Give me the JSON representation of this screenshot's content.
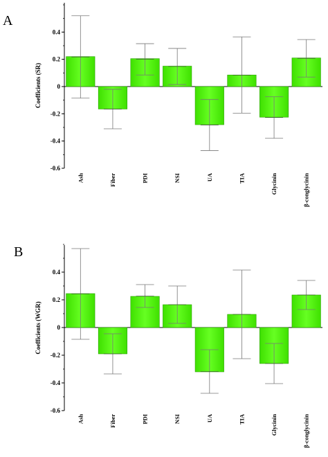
{
  "chart_data": [
    {
      "type": "bar",
      "panel_label": "A",
      "categories": [
        "Ash",
        "Fiber",
        "PDI",
        "NSI",
        "UA",
        "TIA",
        "Glycinin",
        "β-conglycinin"
      ],
      "values": [
        0.22,
        -0.165,
        0.205,
        0.15,
        -0.28,
        0.085,
        -0.225,
        0.21
      ],
      "error_high": [
        0.52,
        -0.02,
        0.315,
        0.28,
        -0.095,
        0.365,
        -0.075,
        0.345
      ],
      "error_low": [
        -0.085,
        -0.31,
        0.085,
        0.015,
        -0.47,
        -0.195,
        -0.38,
        0.07
      ],
      "ylabel": "Coefficients (SR)",
      "ylim": [
        -0.6,
        0.6
      ],
      "yticks": [
        -0.6,
        -0.4,
        -0.2,
        0,
        0.2,
        0.4
      ],
      "ytick_labels": [
        "-0.6",
        "-0.4",
        "-0.2",
        "0",
        "0.2",
        "0.4"
      ],
      "bar_color": "#44ee00",
      "grid": false
    },
    {
      "type": "bar",
      "panel_label": "B",
      "categories": [
        "Ash",
        "Fiber",
        "PDI",
        "NSI",
        "UA",
        "TIA",
        "Glycinin",
        "β-conglycinin"
      ],
      "values": [
        0.245,
        -0.19,
        0.225,
        0.165,
        -0.32,
        0.095,
        -0.26,
        0.235
      ],
      "error_high": [
        0.57,
        -0.045,
        0.31,
        0.3,
        -0.16,
        0.415,
        -0.115,
        0.34
      ],
      "error_low": [
        -0.085,
        -0.335,
        0.145,
        0.03,
        -0.475,
        -0.225,
        -0.405,
        0.13
      ],
      "ylabel": "Coefficients (WGR)",
      "ylim": [
        -0.6,
        0.6
      ],
      "yticks": [
        -0.6,
        -0.4,
        -0.2,
        0,
        0.2,
        0.4
      ],
      "ytick_labels": [
        "-0.6",
        "-0.4",
        "-0.2",
        "0",
        "0.2",
        "0.4"
      ],
      "bar_color": "#44ee00",
      "grid": false
    }
  ]
}
